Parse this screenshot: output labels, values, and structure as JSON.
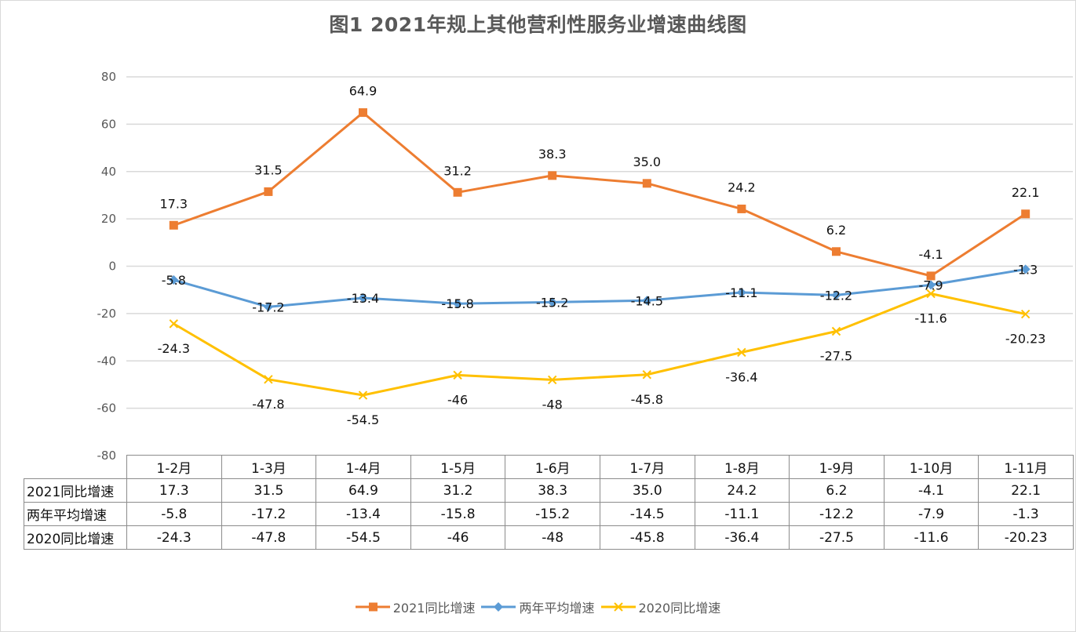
{
  "chart_data": {
    "type": "line",
    "title": "图1   2021年规上其他营利性服务业增速曲线图",
    "xlabel": "",
    "ylabel": "",
    "ylim": [
      -80,
      80
    ],
    "yticks": [
      "80",
      "60",
      "40",
      "20",
      "0",
      "-20",
      "-40",
      "-60",
      "-80"
    ],
    "ytick_values": [
      80,
      60,
      40,
      20,
      0,
      -20,
      -40,
      -60,
      -80
    ],
    "grid": true,
    "legend_position": "bottom",
    "categories": [
      "1-2月",
      "1-3月",
      "1-4月",
      "1-5月",
      "1-6月",
      "1-7月",
      "1-8月",
      "1-9月",
      "1-10月",
      "1-11月"
    ],
    "series": [
      {
        "name": "2021同比增速",
        "color": "#ED7D31",
        "marker": "square",
        "values": [
          17.3,
          31.5,
          64.9,
          31.2,
          38.3,
          35.0,
          24.2,
          6.2,
          -4.1,
          22.1
        ],
        "labels": [
          "17.3",
          "31.5",
          "64.9",
          "31.2",
          "38.3",
          "35.0",
          "24.2",
          "6.2",
          "-4.1",
          "22.1"
        ],
        "label_pos": "above"
      },
      {
        "name": "两年平均增速",
        "color": "#5B9BD5",
        "marker": "diamond",
        "values": [
          -5.8,
          -17.2,
          -13.4,
          -15.8,
          -15.2,
          -14.5,
          -11.1,
          -12.2,
          -7.9,
          -1.3
        ],
        "labels": [
          "-5.8",
          "-17.2",
          "-13.4",
          "-15.8",
          "-15.2",
          "-14.5",
          "-11.1",
          "-12.2",
          "-7.9",
          "-1.3"
        ],
        "label_pos": "center"
      },
      {
        "name": "2020同比增速",
        "color": "#FFC000",
        "marker": "x",
        "values": [
          -24.3,
          -47.8,
          -54.5,
          -46,
          -48,
          -45.8,
          -36.4,
          -27.5,
          -11.6,
          -20.23
        ],
        "labels": [
          "-24.3",
          "-47.8",
          "-54.5",
          "-46",
          "-48",
          "-45.8",
          "-36.4",
          "-27.5",
          "-11.6",
          "-20.23"
        ],
        "label_pos": "below"
      }
    ],
    "data_table": {
      "header": [
        "1-2月",
        "1-3月",
        "1-4月",
        "1-5月",
        "1-6月",
        "1-7月",
        "1-8月",
        "1-9月",
        "1-10月",
        "1-11月"
      ],
      "rows": [
        {
          "name": "2021同比增速",
          "cells": [
            "17.3",
            "31.5",
            "64.9",
            "31.2",
            "38.3",
            "35.0",
            "24.2",
            "6.2",
            "-4.1",
            "22.1"
          ]
        },
        {
          "name": "两年平均增速",
          "cells": [
            "-5.8",
            "-17.2",
            "-13.4",
            "-15.8",
            "-15.2",
            "-14.5",
            "-11.1",
            "-12.2",
            "-7.9",
            "-1.3"
          ]
        },
        {
          "name": "2020同比增速",
          "cells": [
            "-24.3",
            "-47.8",
            "-54.5",
            "-46",
            "-48",
            "-45.8",
            "-36.4",
            "-27.5",
            "-11.6",
            "-20.23"
          ]
        }
      ]
    }
  },
  "gridline_color": "#d9d9d9"
}
